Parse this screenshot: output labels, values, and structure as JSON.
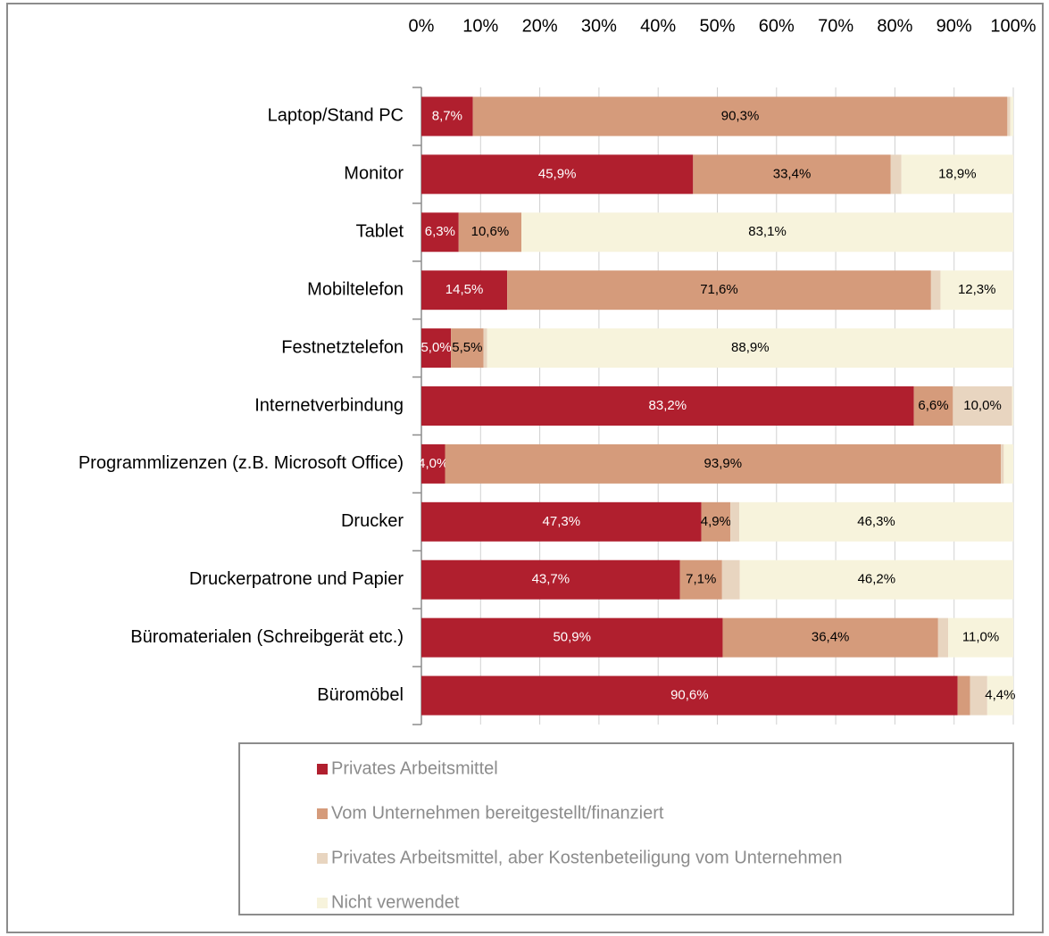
{
  "chart_data": {
    "type": "stacked-barh",
    "categories": [
      "Laptop/Stand PC",
      "Monitor",
      "Tablet",
      "Mobiltelefon",
      "Festnetztelefon",
      "Internetverbindung",
      "Programmlizenzen (z.B. Microsoft Office)",
      "Drucker",
      "Druckerpatrone und Papier",
      "Büromaterialen (Schreibgerät etc.)",
      "Büromöbel"
    ],
    "series": [
      {
        "name": "Privates Arbeitsmittel",
        "color": "#b01f2e",
        "values": [
          8.7,
          45.9,
          6.3,
          14.5,
          5.0,
          83.2,
          4.0,
          47.3,
          43.7,
          50.9,
          90.6
        ],
        "value_labels": [
          "8,7%",
          "45,9%",
          "6,3%",
          "14,5%",
          "5,0%",
          "83,2%",
          "4,0%",
          "47,3%",
          "43,7%",
          "50,9%",
          "90,6%"
        ]
      },
      {
        "name": "Vom Unternehmen bereitgestellt/finanziert",
        "color": "#d59b7b",
        "values": [
          90.3,
          33.4,
          10.6,
          71.6,
          5.5,
          6.6,
          93.9,
          4.9,
          7.1,
          36.4,
          2.1
        ],
        "value_labels": [
          "90,3%",
          "33,4%",
          "10,6%",
          "71,6%",
          "5,5%",
          "6,6%",
          "93,9%",
          "4,9%",
          "7,1%",
          "36,4%",
          null
        ]
      },
      {
        "name": "Privates Arbeitsmittel, aber Kostenbeteiligung vom Unternehmen",
        "color": "#e8d5c0",
        "values": [
          0.5,
          1.8,
          0,
          1.6,
          0.6,
          10.0,
          0.5,
          1.5,
          3.0,
          1.7,
          2.9
        ],
        "value_labels": [
          null,
          null,
          null,
          null,
          null,
          "10,0%",
          null,
          null,
          null,
          null,
          null
        ]
      },
      {
        "name": "Nicht verwendet",
        "color": "#f7f3dc",
        "values": [
          0.5,
          18.9,
          83.1,
          12.3,
          88.9,
          0.2,
          1.6,
          46.3,
          46.2,
          11.0,
          4.4
        ],
        "value_labels": [
          null,
          "18,9%",
          "83,1%",
          "12,3%",
          "88,9%",
          null,
          null,
          "46,3%",
          "46,2%",
          "11,0%",
          "4,4%"
        ]
      }
    ],
    "xlim": [
      0,
      100
    ],
    "xticks": [
      {
        "value": 0,
        "label": "0%"
      },
      {
        "value": 10,
        "label": "10%"
      },
      {
        "value": 20,
        "label": "20%"
      },
      {
        "value": 30,
        "label": "30%"
      },
      {
        "value": 40,
        "label": "40%"
      },
      {
        "value": 50,
        "label": "50%"
      },
      {
        "value": 60,
        "label": "60%"
      },
      {
        "value": 70,
        "label": "70%"
      },
      {
        "value": 80,
        "label": "80%"
      },
      {
        "value": 90,
        "label": "90%"
      },
      {
        "value": 100,
        "label": "100%"
      }
    ],
    "grid": true
  }
}
